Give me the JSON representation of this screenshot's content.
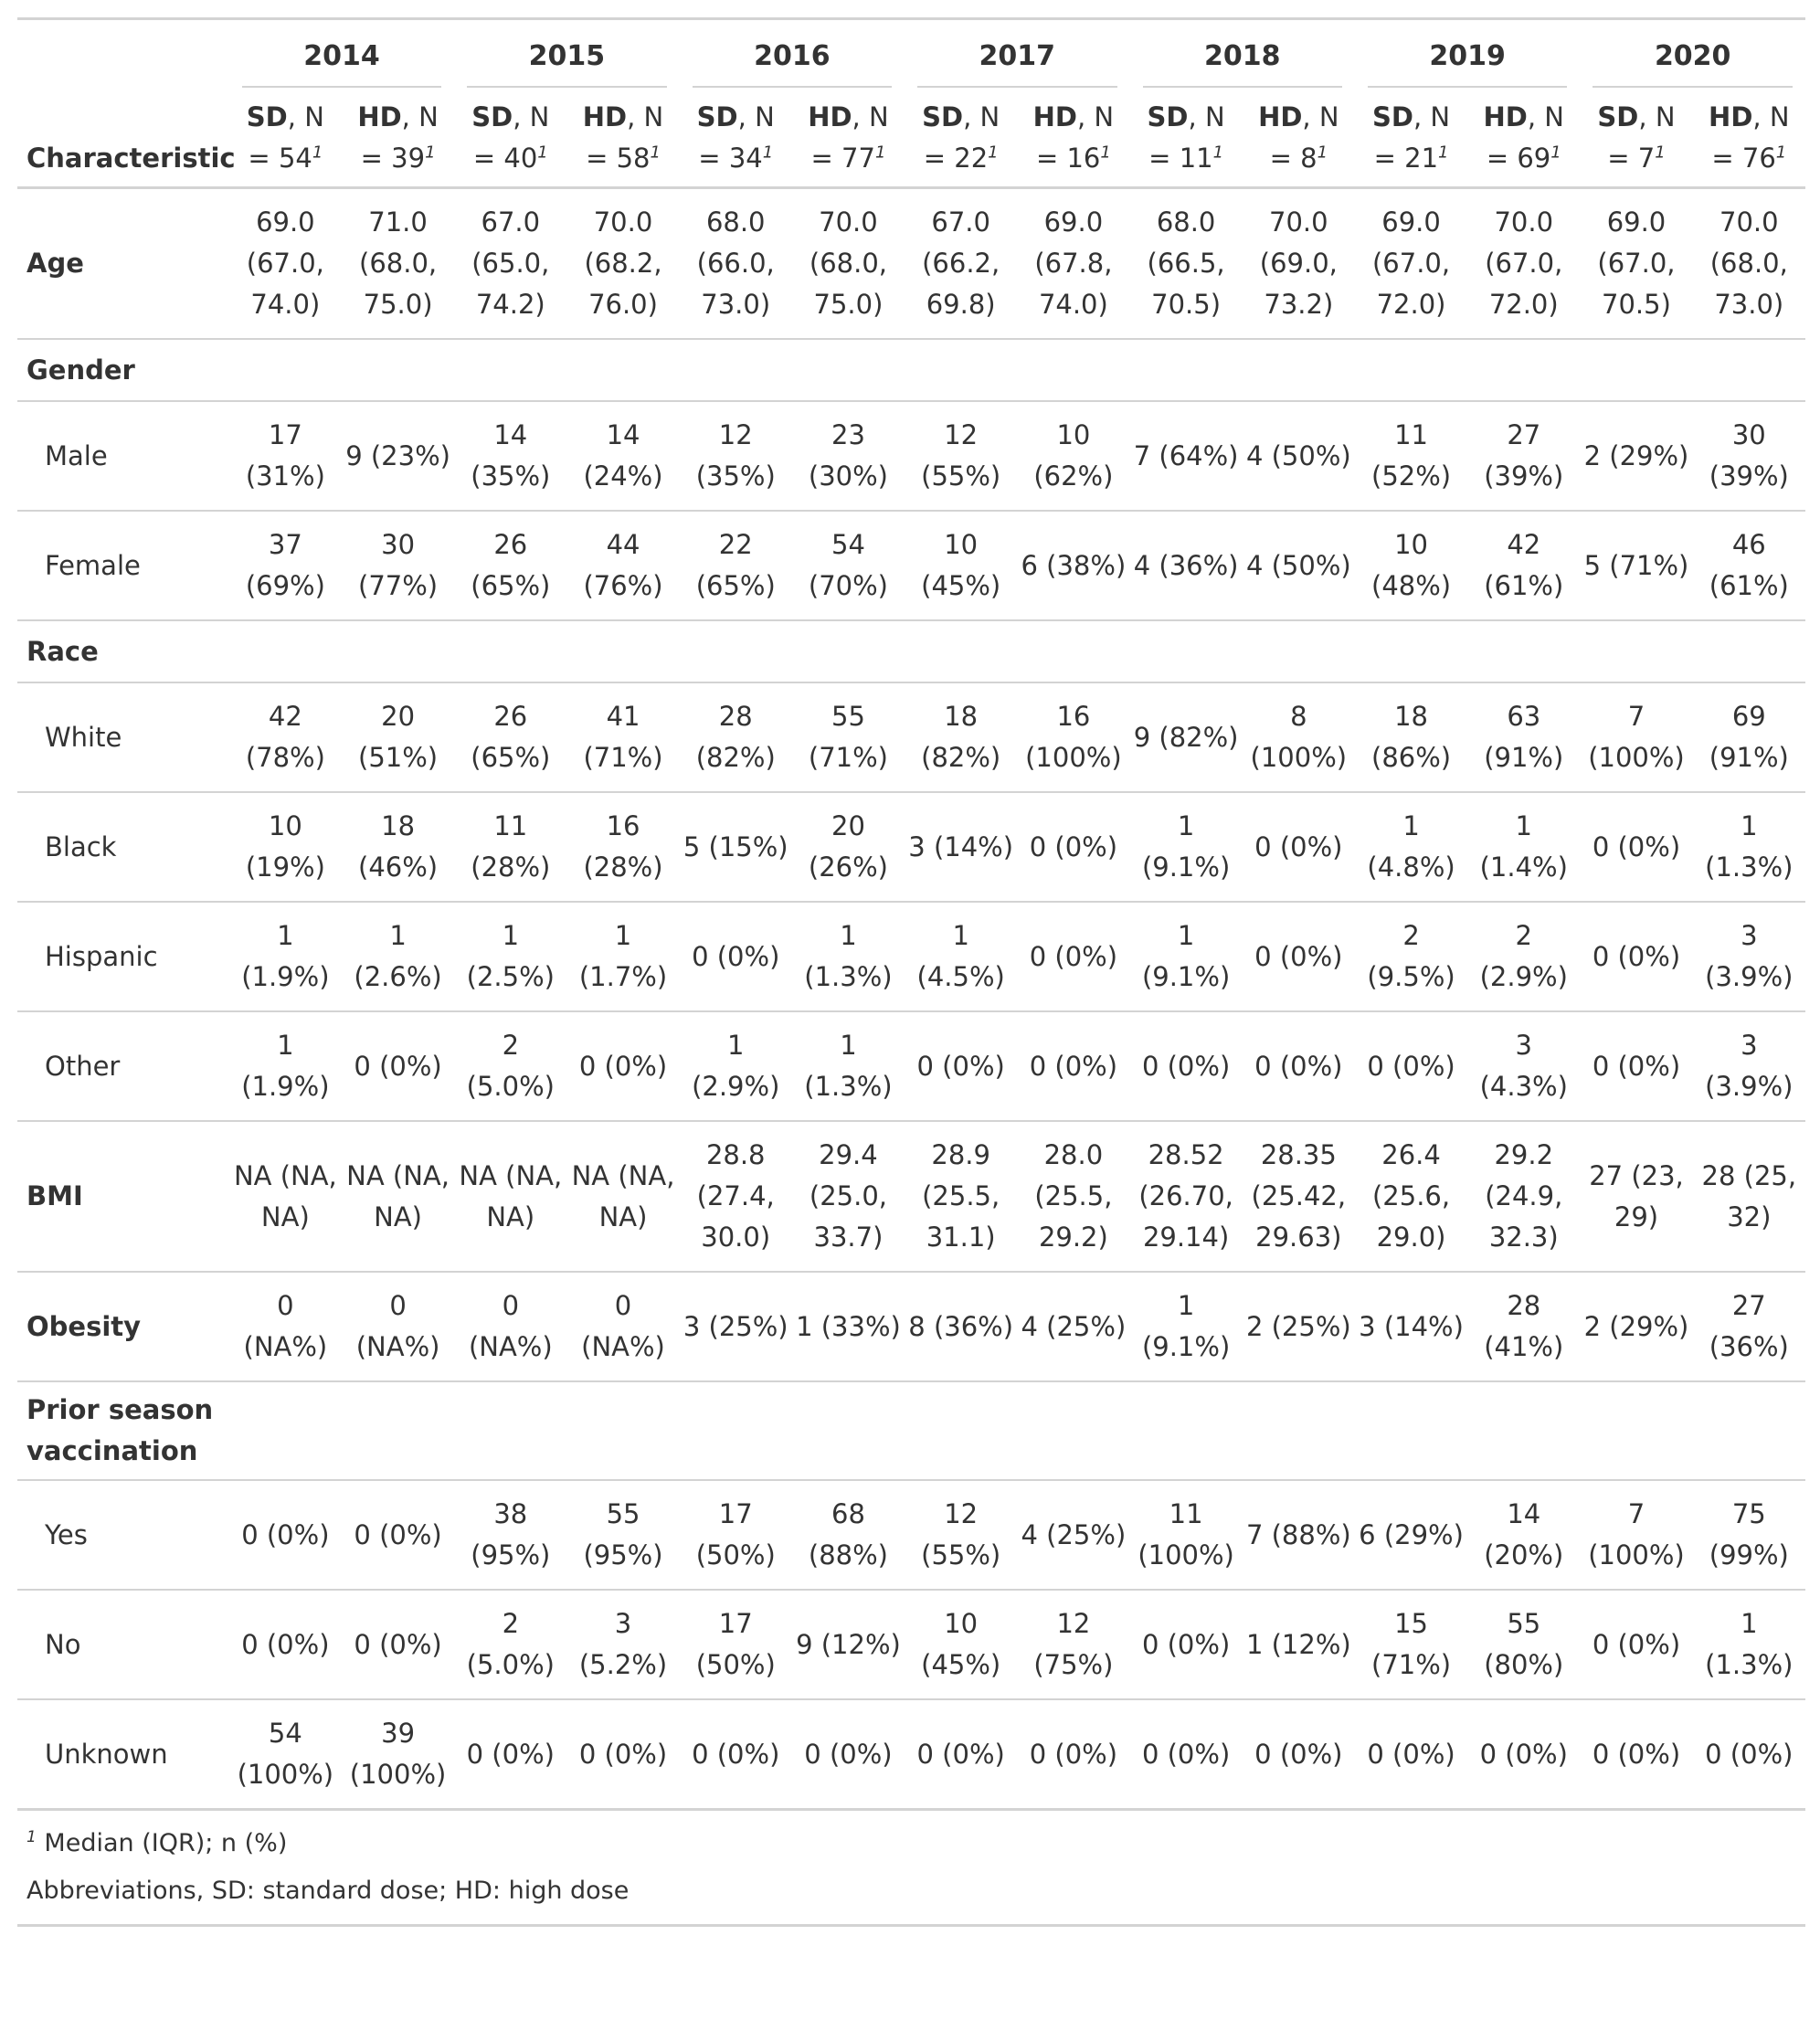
{
  "header": {
    "characteristic": "Characteristic",
    "years": [
      "2014",
      "2015",
      "2016",
      "2017",
      "2018",
      "2019",
      "2020"
    ],
    "columns": [
      {
        "arm": "SD",
        "n": ", N = 54"
      },
      {
        "arm": "HD",
        "n": ", N = 39"
      },
      {
        "arm": "SD",
        "n": ", N = 40"
      },
      {
        "arm": "HD",
        "n": ", N = 58"
      },
      {
        "arm": "SD",
        "n": ", N = 34"
      },
      {
        "arm": "HD",
        "n": ", N = 77"
      },
      {
        "arm": "SD",
        "n": ", N = 22"
      },
      {
        "arm": "HD",
        "n": ", N = 16"
      },
      {
        "arm": "SD",
        "n": ", N = 11"
      },
      {
        "arm": "HD",
        "n": ", N = 8"
      },
      {
        "arm": "SD",
        "n": ", N = 21"
      },
      {
        "arm": "HD",
        "n": ", N = 69"
      },
      {
        "arm": "SD",
        "n": ", N = 7"
      },
      {
        "arm": "HD",
        "n": ", N = 76"
      }
    ],
    "footnote_mark": "1"
  },
  "rows": [
    {
      "label": "Age",
      "kind": "var",
      "cells": [
        "69.0 (67.0, 74.0)",
        "71.0 (68.0, 75.0)",
        "67.0 (65.0, 74.2)",
        "70.0 (68.2, 76.0)",
        "68.0 (66.0, 73.0)",
        "70.0 (68.0, 75.0)",
        "67.0 (66.2, 69.8)",
        "69.0 (67.8, 74.0)",
        "68.0 (66.5, 70.5)",
        "70.0 (69.0, 73.2)",
        "69.0 (67.0, 72.0)",
        "70.0 (67.0, 72.0)",
        "69.0 (67.0, 70.5)",
        "70.0 (68.0, 73.0)"
      ]
    },
    {
      "label": "Gender",
      "kind": "group",
      "cells": []
    },
    {
      "label": "Male",
      "kind": "sub",
      "cells": [
        "17 (31%)",
        "9 (23%)",
        "14 (35%)",
        "14 (24%)",
        "12 (35%)",
        "23 (30%)",
        "12 (55%)",
        "10 (62%)",
        "7 (64%)",
        "4 (50%)",
        "11 (52%)",
        "27 (39%)",
        "2 (29%)",
        "30 (39%)"
      ]
    },
    {
      "label": "Female",
      "kind": "sub",
      "cells": [
        "37 (69%)",
        "30 (77%)",
        "26 (65%)",
        "44 (76%)",
        "22 (65%)",
        "54 (70%)",
        "10 (45%)",
        "6 (38%)",
        "4 (36%)",
        "4 (50%)",
        "10 (48%)",
        "42 (61%)",
        "5 (71%)",
        "46 (61%)"
      ]
    },
    {
      "label": "Race",
      "kind": "group",
      "cells": []
    },
    {
      "label": "White",
      "kind": "sub",
      "cells": [
        "42 (78%)",
        "20 (51%)",
        "26 (65%)",
        "41 (71%)",
        "28 (82%)",
        "55 (71%)",
        "18 (82%)",
        "16 (100%)",
        "9 (82%)",
        "8 (100%)",
        "18 (86%)",
        "63 (91%)",
        "7 (100%)",
        "69 (91%)"
      ]
    },
    {
      "label": "Black",
      "kind": "sub",
      "cells": [
        "10 (19%)",
        "18 (46%)",
        "11 (28%)",
        "16 (28%)",
        "5 (15%)",
        "20 (26%)",
        "3 (14%)",
        "0 (0%)",
        "1 (9.1%)",
        "0 (0%)",
        "1 (4.8%)",
        "1 (1.4%)",
        "0 (0%)",
        "1 (1.3%)"
      ]
    },
    {
      "label": "Hispanic",
      "kind": "sub",
      "cells": [
        "1 (1.9%)",
        "1 (2.6%)",
        "1 (2.5%)",
        "1 (1.7%)",
        "0 (0%)",
        "1 (1.3%)",
        "1 (4.5%)",
        "0 (0%)",
        "1 (9.1%)",
        "0 (0%)",
        "2 (9.5%)",
        "2 (2.9%)",
        "0 (0%)",
        "3 (3.9%)"
      ]
    },
    {
      "label": "Other",
      "kind": "sub",
      "cells": [
        "1 (1.9%)",
        "0 (0%)",
        "2 (5.0%)",
        "0 (0%)",
        "1 (2.9%)",
        "1 (1.3%)",
        "0 (0%)",
        "0 (0%)",
        "0 (0%)",
        "0 (0%)",
        "0 (0%)",
        "3 (4.3%)",
        "0 (0%)",
        "3 (3.9%)"
      ]
    },
    {
      "label": "BMI",
      "kind": "var",
      "cells": [
        "NA (NA, NA)",
        "NA (NA, NA)",
        "NA (NA, NA)",
        "NA (NA, NA)",
        "28.8 (27.4, 30.0)",
        "29.4 (25.0, 33.7)",
        "28.9 (25.5, 31.1)",
        "28.0 (25.5, 29.2)",
        "28.52 (26.70, 29.14)",
        "28.35 (25.42, 29.63)",
        "26.4 (25.6, 29.0)",
        "29.2 (24.9, 32.3)",
        "27 (23, 29)",
        "28 (25, 32)"
      ]
    },
    {
      "label": "Obesity",
      "kind": "var",
      "cells": [
        "0 (NA%)",
        "0 (NA%)",
        "0 (NA%)",
        "0 (NA%)",
        "3 (25%)",
        "1 (33%)",
        "8 (36%)",
        "4 (25%)",
        "1 (9.1%)",
        "2 (25%)",
        "3 (14%)",
        "28 (41%)",
        "2 (29%)",
        "27 (36%)"
      ]
    },
    {
      "label": "Prior season vaccination",
      "kind": "group",
      "cells": []
    },
    {
      "label": "Yes",
      "kind": "sub",
      "cells": [
        "0 (0%)",
        "0 (0%)",
        "38 (95%)",
        "55 (95%)",
        "17 (50%)",
        "68 (88%)",
        "12 (55%)",
        "4 (25%)",
        "11 (100%)",
        "7 (88%)",
        "6 (29%)",
        "14 (20%)",
        "7 (100%)",
        "75 (99%)"
      ]
    },
    {
      "label": "No",
      "kind": "sub",
      "cells": [
        "0 (0%)",
        "0 (0%)",
        "2 (5.0%)",
        "3 (5.2%)",
        "17 (50%)",
        "9 (12%)",
        "10 (45%)",
        "12 (75%)",
        "0 (0%)",
        "1 (12%)",
        "15 (71%)",
        "55 (80%)",
        "0 (0%)",
        "1 (1.3%)"
      ]
    },
    {
      "label": "Unknown",
      "kind": "sub",
      "cells": [
        "54 (100%)",
        "39 (100%)",
        "0 (0%)",
        "0 (0%)",
        "0 (0%)",
        "0 (0%)",
        "0 (0%)",
        "0 (0%)",
        "0 (0%)",
        "0 (0%)",
        "0 (0%)",
        "0 (0%)",
        "0 (0%)",
        "0 (0%)"
      ]
    }
  ],
  "footer": {
    "footnote_mark": "1",
    "footnote_text": "Median (IQR); n (%)",
    "abbreviations": "Abbreviations, SD: standard dose; HD: high dose"
  }
}
